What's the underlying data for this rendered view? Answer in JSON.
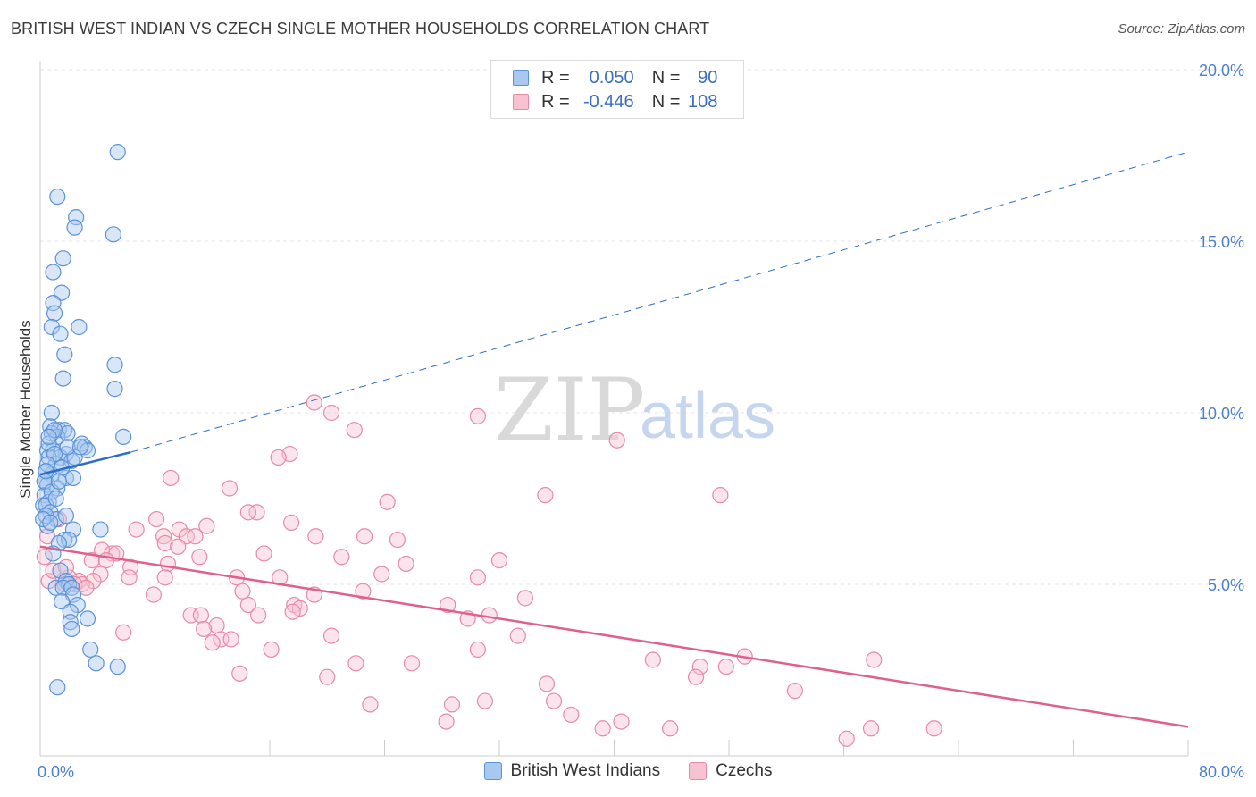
{
  "header": {
    "title": "BRITISH WEST INDIAN VS CZECH SINGLE MOTHER HOUSEHOLDS CORRELATION CHART",
    "source": "Source: ZipAtlas.com"
  },
  "watermark": {
    "part1": "ZIP",
    "part2": "atlas"
  },
  "legend": {
    "r_label": "R =",
    "n_label": "N =",
    "rows": [
      {
        "r": "0.050",
        "n": "90"
      },
      {
        "r": "-0.446",
        "n": "108"
      }
    ]
  },
  "colors": {
    "blue_fill": "#a9c8f0",
    "blue_stroke": "#5b93d8",
    "blue_line": "#2a6dc8",
    "pink_fill": "#f7c3d3",
    "pink_stroke": "#e68aa8",
    "pink_line": "#e0608c"
  },
  "chart_data": {
    "type": "scatter",
    "title": "BRITISH WEST INDIAN VS CZECH SINGLE MOTHER HOUSEHOLDS CORRELATION CHART",
    "xlabel": "",
    "ylabel": "Single Mother Households",
    "xlim": [
      0,
      80
    ],
    "ylim": [
      0,
      20
    ],
    "x_ticks": [
      "0.0%",
      "80.0%"
    ],
    "y_ticks": [
      "5.0%",
      "10.0%",
      "15.0%",
      "20.0%"
    ],
    "y_tick_values": [
      5,
      10,
      15,
      20
    ],
    "grid": true,
    "legend_position": "top-center",
    "series": [
      {
        "name": "British West Indians",
        "color": "#5b93d8",
        "points": [
          [
            5.4,
            17.6
          ],
          [
            1.2,
            16.3
          ],
          [
            2.5,
            15.7
          ],
          [
            2.4,
            15.4
          ],
          [
            5.1,
            15.2
          ],
          [
            1.6,
            14.5
          ],
          [
            0.9,
            14.1
          ],
          [
            1.5,
            13.5
          ],
          [
            0.9,
            13.2
          ],
          [
            1.0,
            12.9
          ],
          [
            2.7,
            12.5
          ],
          [
            0.8,
            12.5
          ],
          [
            1.4,
            12.3
          ],
          [
            1.7,
            11.7
          ],
          [
            5.2,
            11.4
          ],
          [
            1.6,
            11.0
          ],
          [
            5.2,
            10.7
          ],
          [
            0.8,
            10.0
          ],
          [
            0.7,
            9.6
          ],
          [
            1.3,
            9.5
          ],
          [
            1.7,
            9.5
          ],
          [
            0.8,
            9.4
          ],
          [
            1.2,
            9.3
          ],
          [
            5.8,
            9.3
          ],
          [
            2.9,
            9.1
          ],
          [
            3.1,
            9.0
          ],
          [
            0.5,
            8.9
          ],
          [
            0.9,
            8.9
          ],
          [
            1.8,
            8.8
          ],
          [
            3.3,
            8.9
          ],
          [
            1.4,
            8.7
          ],
          [
            0.6,
            8.7
          ],
          [
            2.2,
            8.6
          ],
          [
            1.1,
            8.5
          ],
          [
            0.4,
            8.3
          ],
          [
            0.8,
            8.2
          ],
          [
            1.8,
            8.1
          ],
          [
            2.3,
            8.1
          ],
          [
            0.3,
            8.0
          ],
          [
            0.5,
            7.9
          ],
          [
            1.2,
            7.8
          ],
          [
            0.3,
            7.6
          ],
          [
            0.6,
            7.4
          ],
          [
            0.2,
            7.3
          ],
          [
            0.4,
            7.3
          ],
          [
            0.7,
            7.1
          ],
          [
            1.1,
            6.9
          ],
          [
            1.8,
            7.0
          ],
          [
            0.5,
            6.7
          ],
          [
            2.3,
            6.6
          ],
          [
            4.2,
            6.6
          ],
          [
            1.7,
            6.3
          ],
          [
            2.0,
            6.3
          ],
          [
            1.3,
            6.2
          ],
          [
            0.9,
            5.9
          ],
          [
            1.4,
            5.4
          ],
          [
            1.8,
            5.1
          ],
          [
            2.0,
            5.0
          ],
          [
            1.1,
            4.9
          ],
          [
            1.6,
            4.9
          ],
          [
            2.2,
            4.9
          ],
          [
            2.3,
            4.7
          ],
          [
            1.5,
            4.5
          ],
          [
            2.6,
            4.4
          ],
          [
            2.1,
            4.2
          ],
          [
            3.3,
            4.0
          ],
          [
            2.1,
            3.9
          ],
          [
            2.2,
            3.7
          ],
          [
            3.5,
            3.1
          ],
          [
            3.9,
            2.7
          ],
          [
            5.4,
            2.6
          ],
          [
            1.2,
            2.0
          ],
          [
            0.3,
            8.0
          ],
          [
            0.6,
            9.1
          ],
          [
            1.0,
            8.8
          ],
          [
            1.9,
            9.4
          ],
          [
            2.4,
            8.7
          ],
          [
            0.4,
            7.0
          ],
          [
            0.8,
            7.7
          ],
          [
            1.5,
            8.4
          ],
          [
            0.2,
            6.9
          ],
          [
            0.5,
            8.5
          ],
          [
            1.0,
            9.5
          ],
          [
            1.3,
            8.0
          ],
          [
            0.7,
            6.8
          ],
          [
            1.9,
            9.0
          ],
          [
            0.4,
            8.3
          ],
          [
            1.1,
            7.5
          ],
          [
            2.8,
            9.0
          ],
          [
            0.6,
            9.3
          ]
        ]
      },
      {
        "name": "Czechs",
        "color": "#e68aa8",
        "points": [
          [
            19.1,
            10.3
          ],
          [
            20.3,
            10.0
          ],
          [
            30.5,
            9.9
          ],
          [
            21.9,
            9.5
          ],
          [
            40.2,
            9.2
          ],
          [
            17.4,
            8.8
          ],
          [
            16.6,
            8.7
          ],
          [
            9.1,
            8.1
          ],
          [
            13.2,
            7.8
          ],
          [
            35.2,
            7.6
          ],
          [
            47.4,
            7.6
          ],
          [
            24.2,
            7.4
          ],
          [
            15.1,
            7.1
          ],
          [
            14.5,
            7.1
          ],
          [
            8.1,
            6.9
          ],
          [
            17.5,
            6.8
          ],
          [
            11.6,
            6.7
          ],
          [
            9.7,
            6.6
          ],
          [
            6.7,
            6.6
          ],
          [
            8.6,
            6.4
          ],
          [
            10.2,
            6.4
          ],
          [
            10.8,
            6.4
          ],
          [
            19.2,
            6.4
          ],
          [
            22.6,
            6.4
          ],
          [
            24.9,
            6.3
          ],
          [
            8.7,
            6.2
          ],
          [
            9.6,
            6.1
          ],
          [
            4.3,
            6.0
          ],
          [
            15.6,
            5.9
          ],
          [
            5.0,
            5.9
          ],
          [
            5.3,
            5.9
          ],
          [
            11.1,
            5.8
          ],
          [
            21.0,
            5.8
          ],
          [
            32.0,
            5.7
          ],
          [
            3.6,
            5.7
          ],
          [
            4.6,
            5.7
          ],
          [
            25.5,
            5.6
          ],
          [
            8.9,
            5.6
          ],
          [
            6.3,
            5.5
          ],
          [
            23.8,
            5.3
          ],
          [
            4.2,
            5.3
          ],
          [
            2.0,
            5.2
          ],
          [
            13.7,
            5.2
          ],
          [
            8.7,
            5.2
          ],
          [
            16.7,
            5.2
          ],
          [
            30.5,
            5.2
          ],
          [
            6.2,
            5.2
          ],
          [
            2.7,
            5.1
          ],
          [
            3.7,
            5.1
          ],
          [
            1.7,
            5.0
          ],
          [
            2.9,
            5.0
          ],
          [
            14.1,
            4.8
          ],
          [
            22.5,
            4.8
          ],
          [
            19.1,
            4.7
          ],
          [
            7.9,
            4.7
          ],
          [
            33.8,
            4.6
          ],
          [
            14.5,
            4.4
          ],
          [
            17.7,
            4.4
          ],
          [
            18.1,
            4.3
          ],
          [
            28.4,
            4.4
          ],
          [
            17.6,
            4.2
          ],
          [
            10.5,
            4.1
          ],
          [
            11.2,
            4.1
          ],
          [
            15.2,
            4.1
          ],
          [
            31.3,
            4.1
          ],
          [
            29.8,
            4.0
          ],
          [
            12.3,
            3.8
          ],
          [
            11.4,
            3.7
          ],
          [
            5.8,
            3.6
          ],
          [
            20.3,
            3.5
          ],
          [
            33.3,
            3.5
          ],
          [
            12.6,
            3.4
          ],
          [
            13.3,
            3.4
          ],
          [
            12.0,
            3.3
          ],
          [
            16.1,
            3.1
          ],
          [
            30.5,
            3.1
          ],
          [
            49.1,
            2.9
          ],
          [
            58.1,
            2.8
          ],
          [
            42.7,
            2.8
          ],
          [
            25.9,
            2.7
          ],
          [
            22.0,
            2.7
          ],
          [
            46.0,
            2.6
          ],
          [
            47.8,
            2.6
          ],
          [
            13.9,
            2.4
          ],
          [
            20.0,
            2.3
          ],
          [
            45.7,
            2.3
          ],
          [
            35.3,
            2.1
          ],
          [
            52.6,
            1.9
          ],
          [
            35.8,
            1.6
          ],
          [
            31.0,
            1.6
          ],
          [
            28.7,
            1.5
          ],
          [
            23.0,
            1.5
          ],
          [
            37.0,
            1.2
          ],
          [
            40.5,
            1.0
          ],
          [
            28.3,
            1.0
          ],
          [
            43.9,
            0.8
          ],
          [
            39.2,
            0.8
          ],
          [
            57.9,
            0.8
          ],
          [
            62.3,
            0.8
          ],
          [
            56.2,
            0.5
          ],
          [
            0.3,
            5.8
          ],
          [
            0.6,
            5.1
          ],
          [
            1.3,
            6.9
          ],
          [
            0.9,
            5.4
          ],
          [
            2.4,
            5.0
          ],
          [
            3.2,
            4.9
          ],
          [
            0.5,
            6.4
          ],
          [
            1.8,
            5.5
          ]
        ]
      }
    ],
    "trend_lines": [
      {
        "series": "British West Indians",
        "solid": [
          [
            0,
            8.2
          ],
          [
            6.3,
            8.85
          ]
        ],
        "dashed": [
          [
            6.3,
            8.85
          ],
          [
            80,
            17.6
          ]
        ]
      },
      {
        "series": "Czechs",
        "solid": [
          [
            0,
            6.1
          ],
          [
            80,
            0.85
          ]
        ]
      }
    ]
  }
}
